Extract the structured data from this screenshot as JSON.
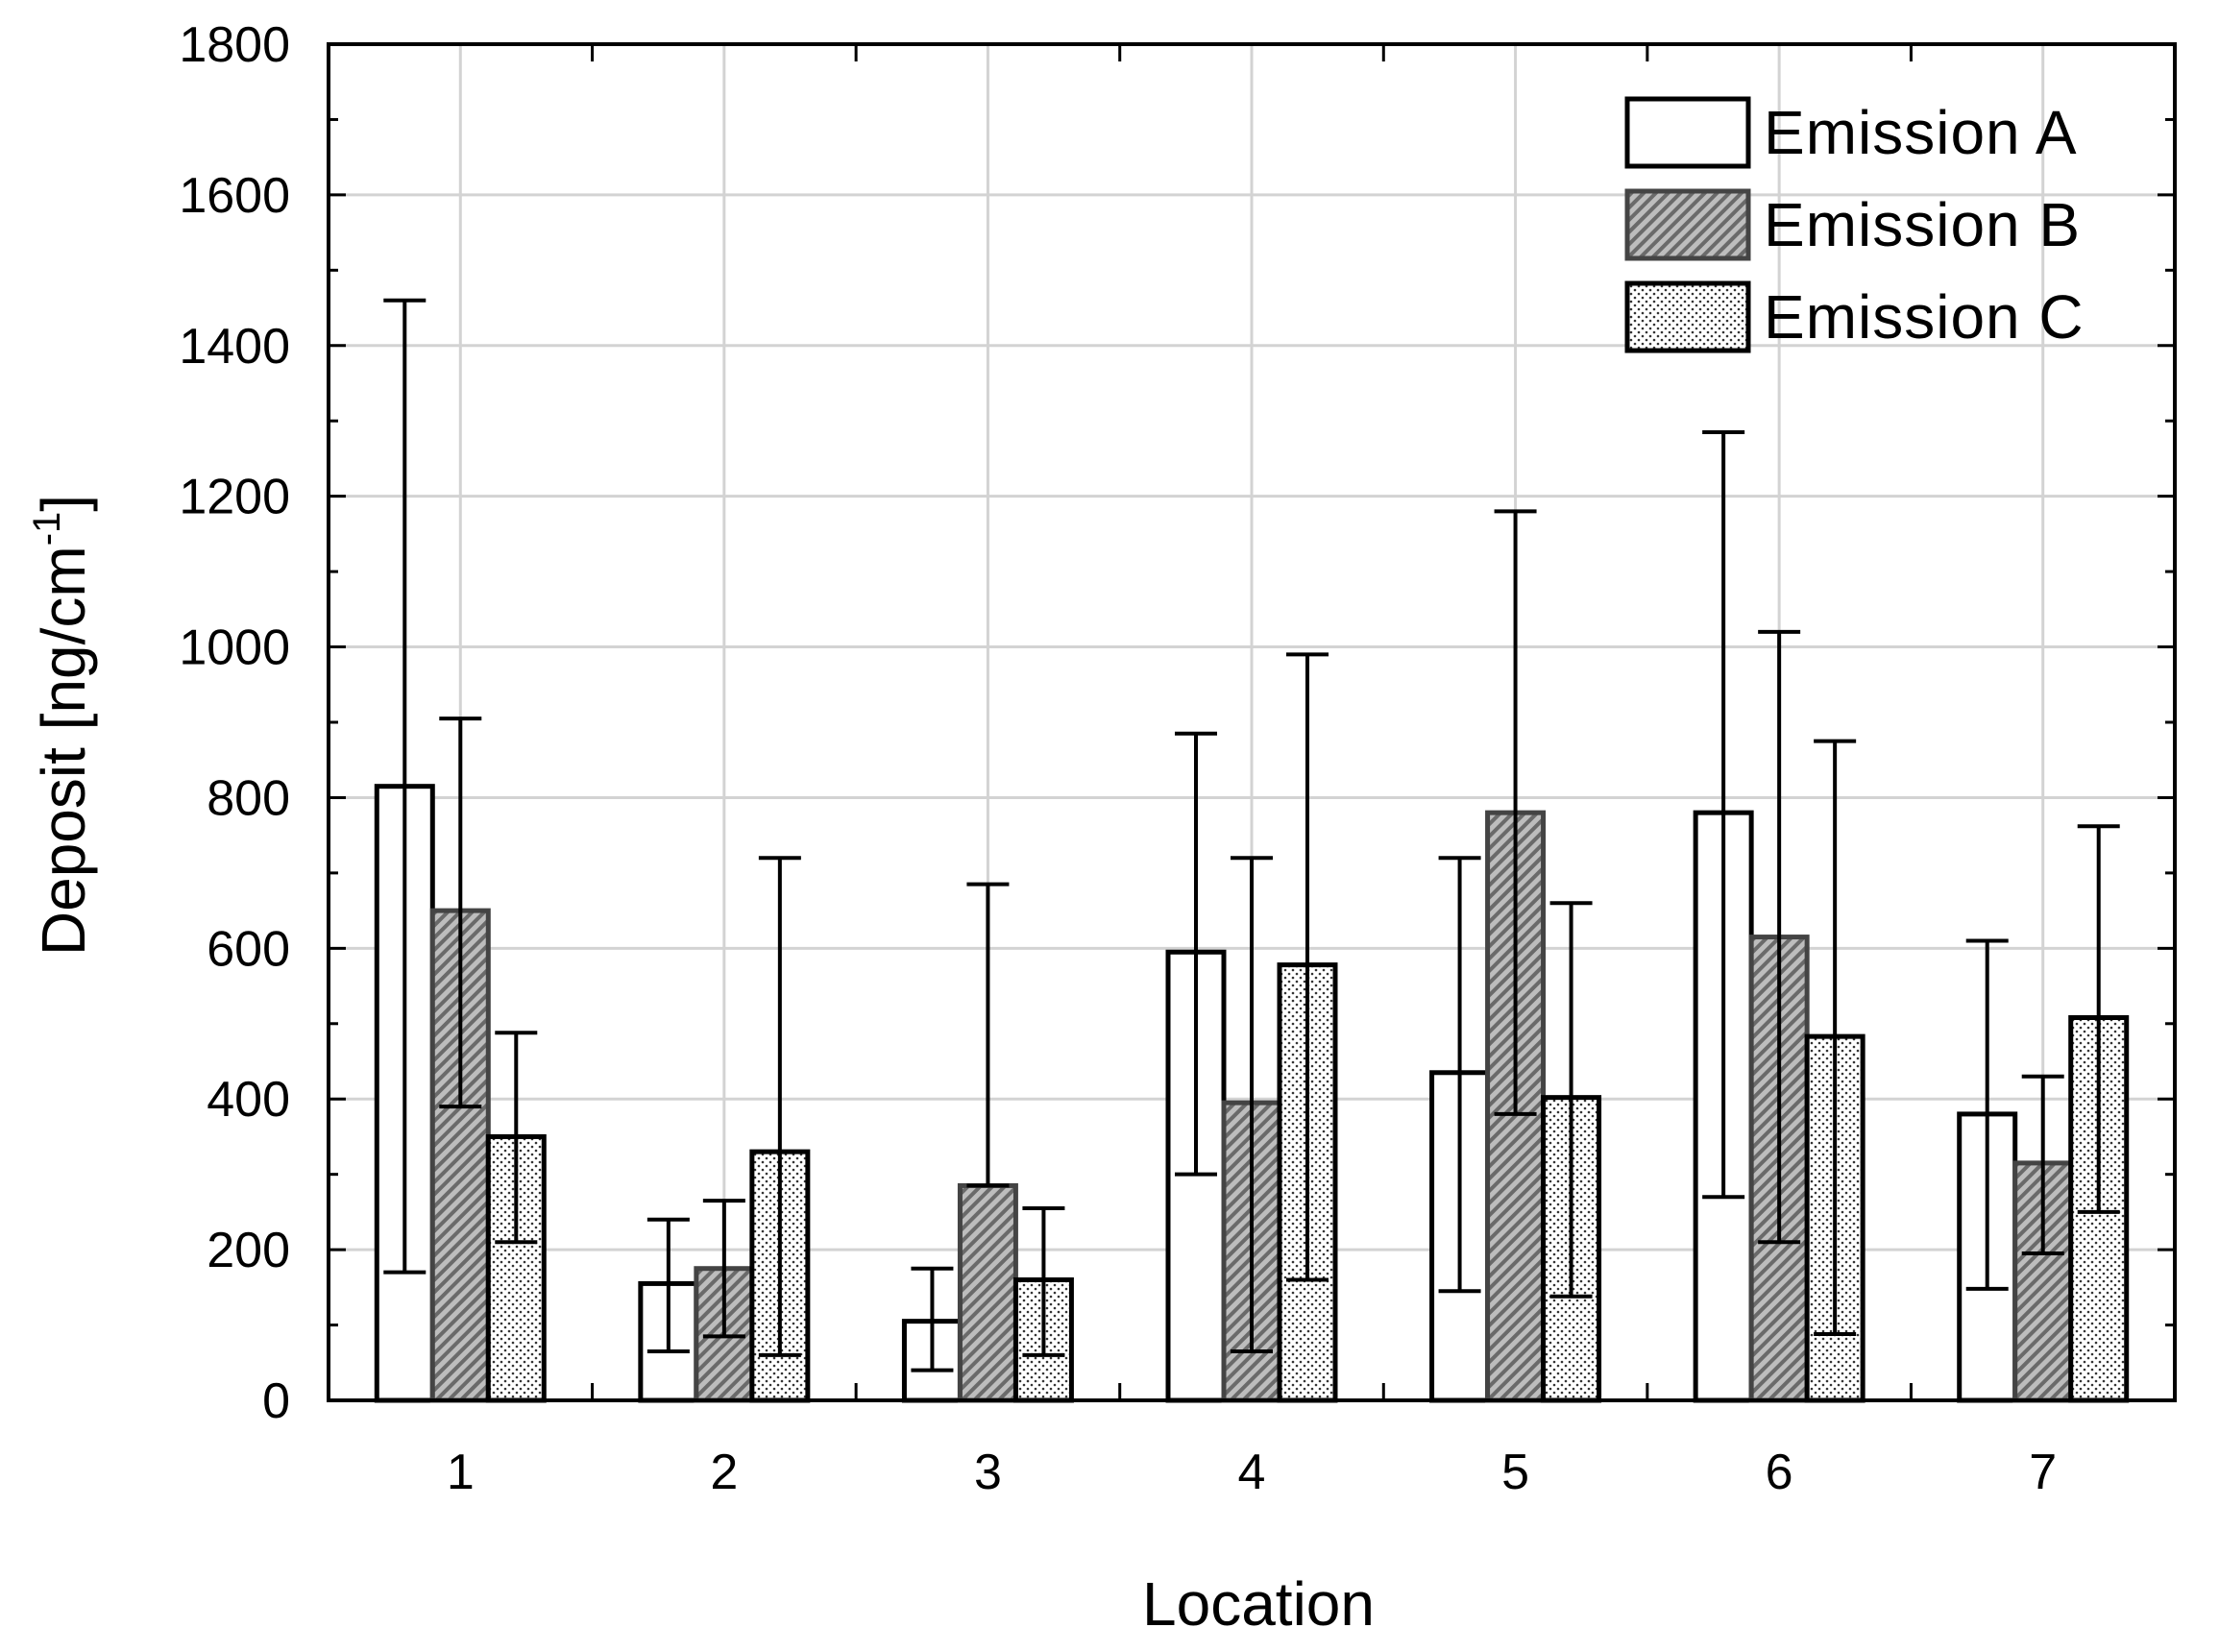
{
  "chart_data": {
    "type": "bar",
    "xlabel": "Location",
    "ylabel": "Deposit [ng/cm",
    "ylabel_superscript": "-1",
    "ylabel_close": "]",
    "ylim": [
      0,
      1800
    ],
    "yticks": [
      0,
      200,
      400,
      600,
      800,
      1000,
      1200,
      1400,
      1600,
      1800
    ],
    "categories": [
      "1",
      "2",
      "3",
      "4",
      "5",
      "6",
      "7"
    ],
    "grid": true,
    "legend_position": "top-right",
    "series": [
      {
        "name": "Emission A",
        "pattern": "white",
        "values": [
          815,
          155,
          105,
          595,
          435,
          780,
          380
        ],
        "err_low": [
          170,
          65,
          40,
          300,
          145,
          270,
          148
        ],
        "err_high": [
          1460,
          240,
          175,
          885,
          720,
          1285,
          610
        ]
      },
      {
        "name": "Emission B",
        "pattern": "hatch",
        "values": [
          650,
          175,
          285,
          395,
          780,
          615,
          315
        ],
        "err_low": [
          390,
          85,
          285,
          65,
          380,
          210,
          195
        ],
        "err_high": [
          905,
          265,
          685,
          720,
          1180,
          1020,
          430
        ]
      },
      {
        "name": "Emission C",
        "pattern": "dots",
        "values": [
          350,
          330,
          160,
          578,
          402,
          483,
          508
        ],
        "err_low": [
          210,
          60,
          60,
          160,
          138,
          88,
          250
        ],
        "err_high": [
          488,
          720,
          255,
          990,
          660,
          875,
          762
        ]
      }
    ]
  }
}
